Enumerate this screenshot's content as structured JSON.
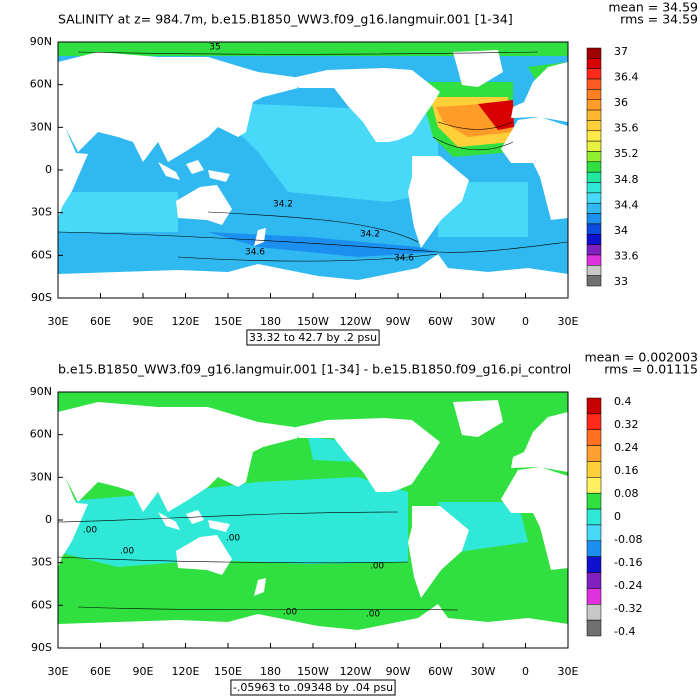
{
  "panels": [
    {
      "title": "SALINITY at z= 984.7m, b.e15.B1850_WW3.f09_g16.langmuir.001 [1-34]",
      "mean": "mean = 34.59",
      "rms": "rms = 34.59",
      "lat_labels": [
        "90N",
        "60N",
        "30N",
        "0",
        "30S",
        "60S",
        "90S"
      ],
      "lon_labels": [
        "30E",
        "60E",
        "90E",
        "120E",
        "150E",
        "180",
        "150W",
        "120W",
        "90W",
        "60W",
        "30W",
        "0",
        "30E"
      ],
      "range_note": "33.32 to 42.7 by .2 psu",
      "contour_labels": [
        "35",
        "34.2",
        "34.2",
        "34.6",
        "34.6"
      ],
      "colorbar": {
        "labels": [
          "37",
          "36.4",
          "36",
          "35.6",
          "35.2",
          "34.8",
          "34.4",
          "34",
          "33.6",
          "33"
        ],
        "colors": [
          "#a00000",
          "#d80000",
          "#ff2a1a",
          "#ff5a20",
          "#ff8020",
          "#ff9c28",
          "#ffb830",
          "#ffd038",
          "#ffea48",
          "#e8f040",
          "#90f030",
          "#30e040",
          "#20e8a0",
          "#30e8d8",
          "#48d8f8",
          "#30b8f0",
          "#1c90f0",
          "#0c4ce0",
          "#1010d0",
          "#8020c0",
          "#e030e0",
          "#c8c8c8",
          "#707070"
        ]
      }
    },
    {
      "title": "b.e15.B1850_WW3.f09_g16.langmuir.001 [1-34] - b.e15.B1850.f09_g16.pi_control",
      "mean": "mean = 0.002003",
      "rms": "rms = 0.01115",
      "lat_labels": [
        "90N",
        "60N",
        "30N",
        "0",
        "30S",
        "60S",
        "90S"
      ],
      "lon_labels": [
        "30E",
        "60E",
        "90E",
        "120E",
        "150E",
        "180",
        "150W",
        "120W",
        "90W",
        "60W",
        "30W",
        "0",
        "30E"
      ],
      "range_note": "-.05963 to .09348 by .04 psu",
      "contour_labels": [
        ".00",
        ".00",
        ".00",
        ".00",
        ".00",
        ".00"
      ],
      "colorbar": {
        "labels": [
          "0.4",
          "0.32",
          "0.24",
          "0.16",
          "0.08",
          "0",
          "-0.08",
          "-0.16",
          "-0.24",
          "-0.32",
          "-0.4"
        ],
        "colors": [
          "#c80000",
          "#ff2a1a",
          "#ff7020",
          "#ffa030",
          "#ffd038",
          "#fff060",
          "#30e040",
          "#30e8d8",
          "#48d8f8",
          "#1c90f0",
          "#1010d0",
          "#8020c0",
          "#e030e0",
          "#c8c8c8",
          "#707070"
        ]
      }
    }
  ]
}
